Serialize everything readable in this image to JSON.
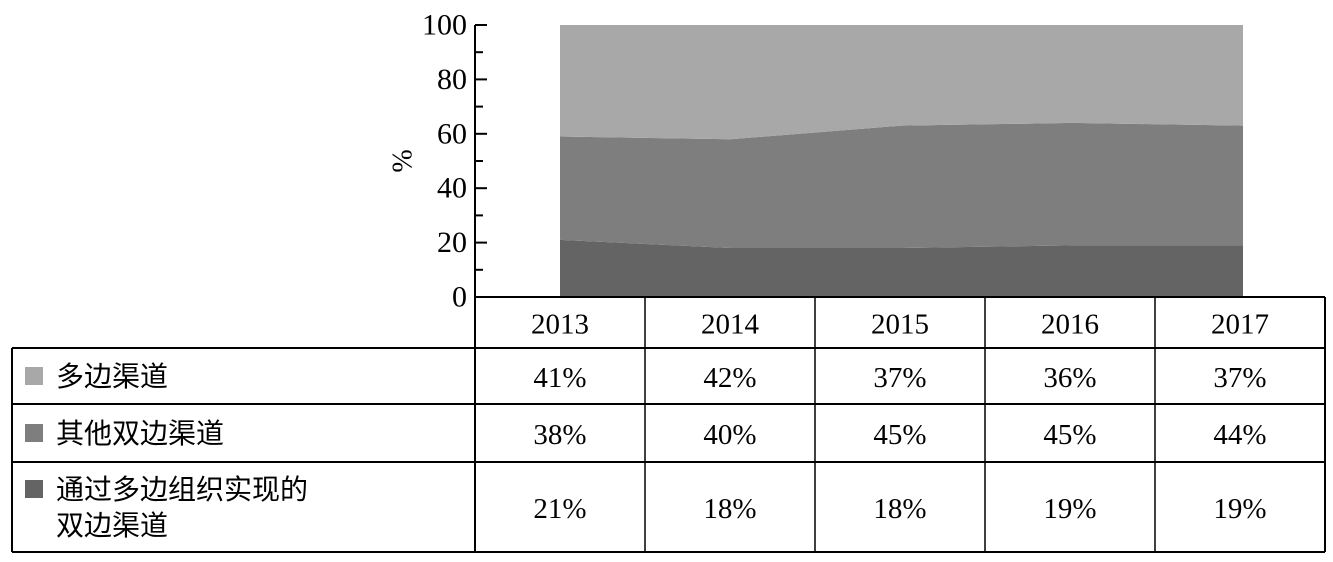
{
  "chart_data": {
    "type": "area",
    "stacked": true,
    "categories": [
      "2013",
      "2014",
      "2015",
      "2016",
      "2017"
    ],
    "ylabel": "%",
    "ylim": [
      0,
      100
    ],
    "yticks": [
      0,
      20,
      40,
      60,
      80,
      100
    ],
    "legend_position": "table-below",
    "series": [
      {
        "name": "通过多边组织实现的双边渠道",
        "name_lines": [
          "通过多边组织实现的",
          "双边渠道"
        ],
        "values": [
          21,
          18,
          18,
          19,
          19
        ],
        "labels": [
          "21%",
          "18%",
          "18%",
          "19%",
          "19%"
        ],
        "color": "#646464"
      },
      {
        "name": "其他双边渠道",
        "name_lines": [
          "其他双边渠道"
        ],
        "values": [
          38,
          40,
          45,
          45,
          44
        ],
        "labels": [
          "38%",
          "40%",
          "45%",
          "45%",
          "44%"
        ],
        "color": "#7e7e7e"
      },
      {
        "name": "多边渠道",
        "name_lines": [
          "多边渠道"
        ],
        "values": [
          41,
          42,
          37,
          36,
          37
        ],
        "labels": [
          "41%",
          "42%",
          "37%",
          "36%",
          "37%"
        ],
        "color": "#a8a8a8"
      }
    ]
  }
}
